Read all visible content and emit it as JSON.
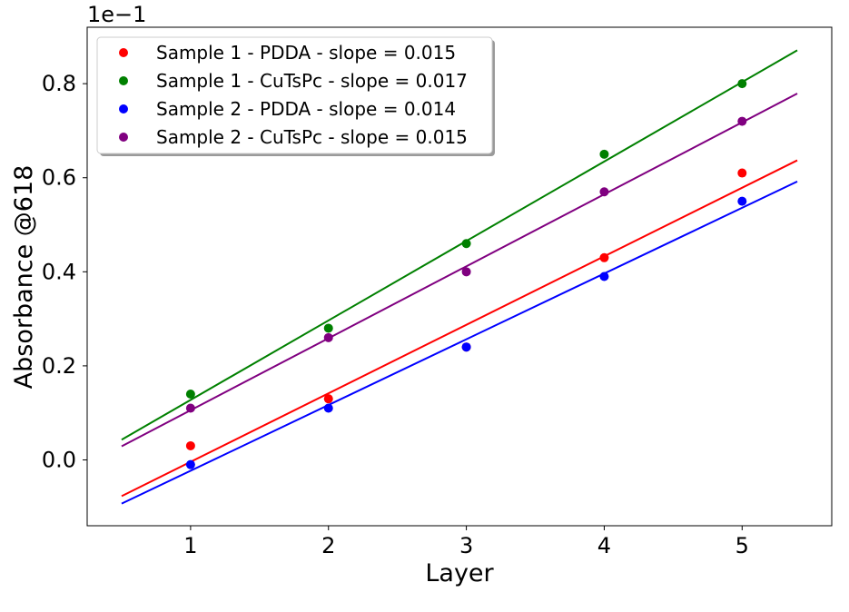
{
  "chart_data": {
    "type": "scatter",
    "xlabel": "Layer",
    "ylabel": "Absorbance @618",
    "offset_label": "1e−1",
    "xlim": [
      0.25,
      5.65
    ],
    "ylim": [
      -0.14,
      0.92
    ],
    "x_ticks": [
      "1",
      "2",
      "3",
      "4",
      "5"
    ],
    "y_ticks": [
      "0.0",
      "0.2",
      "0.4",
      "0.6",
      "0.8"
    ],
    "grid": false,
    "legend_position": "upper-left",
    "x": [
      1,
      2,
      3,
      4,
      5
    ],
    "series": [
      {
        "name": "Sample 1 - PDDA - slope = 0.015",
        "color": "#ff0000",
        "values": [
          0.03,
          0.13,
          0.24,
          0.43,
          0.61
        ],
        "fit": {
          "x": [
            0.5,
            5.4
          ],
          "y": [
            -0.077,
            0.637
          ]
        }
      },
      {
        "name": "Sample 1 - CuTsPc - slope = 0.017",
        "color": "#008000",
        "values": [
          0.14,
          0.28,
          0.46,
          0.65,
          0.8
        ],
        "fit": {
          "x": [
            0.5,
            5.4
          ],
          "y": [
            0.043,
            0.871
          ]
        }
      },
      {
        "name": "Sample 2 - PDDA - slope = 0.014",
        "color": "#0000ff",
        "values": [
          -0.01,
          0.11,
          0.24,
          0.39,
          0.55
        ],
        "fit": {
          "x": [
            0.5,
            5.4
          ],
          "y": [
            -0.093,
            0.592
          ]
        }
      },
      {
        "name": "Sample 2 - CuTsPc - slope = 0.015",
        "color": "#800080",
        "values": [
          0.11,
          0.26,
          0.4,
          0.57,
          0.72
        ],
        "fit": {
          "x": [
            0.5,
            5.4
          ],
          "y": [
            0.029,
            0.779
          ]
        }
      }
    ]
  }
}
